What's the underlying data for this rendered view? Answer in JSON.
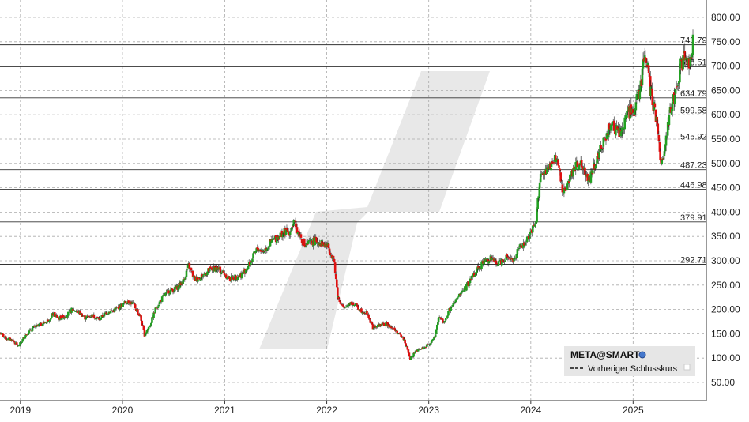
{
  "chart_data": {
    "type": "candlestick",
    "title": "",
    "xlabel": "",
    "ylabel": "",
    "ylim": [
      20,
      820
    ],
    "xlim": [
      "2018-10-20",
      "2025-09-20"
    ],
    "y_ticks": [
      "800.00",
      "750.00",
      "700.00",
      "650.00",
      "600.00",
      "550.00",
      "500.00",
      "450.00",
      "400.00",
      "350.00",
      "300.00",
      "250.00",
      "200.00",
      "150.00",
      "100.00",
      "50.00"
    ],
    "y_tick_values": [
      800,
      750,
      700,
      650,
      600,
      550,
      500,
      450,
      400,
      350,
      300,
      250,
      200,
      150,
      100,
      50
    ],
    "x_ticks": [
      "2019",
      "2020",
      "2021",
      "2022",
      "2023",
      "2024",
      "2025"
    ],
    "x_tick_dates": [
      "2019-01-01",
      "2020-01-01",
      "2021-01-01",
      "2022-01-01",
      "2023-01-01",
      "2024-01-01",
      "2025-01-01"
    ],
    "grid": true,
    "y_axis_position": "right",
    "levels": [
      {
        "value": 743.79,
        "label": "743.79"
      },
      {
        "value": 698.51,
        "label": "698.51"
      },
      {
        "value": 634.79,
        "label": "634.79"
      },
      {
        "value": 599.58,
        "label": "599.58"
      },
      {
        "value": 545.92,
        "label": "545.92"
      },
      {
        "value": 487.23,
        "label": "487.23"
      },
      {
        "value": 446.98,
        "label": "446.98"
      },
      {
        "value": 379.91,
        "label": "379.91"
      },
      {
        "value": 292.71,
        "label": "292.71"
      }
    ],
    "legend": {
      "title": "META@SMART",
      "entries": [
        "Vorheriger Schlusskurs"
      ],
      "placement": "bottom-right"
    },
    "up_color": "#22a022",
    "down_color": "#e01010",
    "series": [
      {
        "values": [
          [
            "2018-10-20",
            152
          ],
          [
            "2018-11-10",
            140
          ],
          [
            "2018-12-01",
            138
          ],
          [
            "2018-12-25",
            124
          ],
          [
            "2019-01-20",
            148
          ],
          [
            "2019-02-15",
            162
          ],
          [
            "2019-03-10",
            168
          ],
          [
            "2019-04-05",
            175
          ],
          [
            "2019-04-28",
            190
          ],
          [
            "2019-05-20",
            182
          ],
          [
            "2019-06-15",
            188
          ],
          [
            "2019-07-05",
            200
          ],
          [
            "2019-07-28",
            195
          ],
          [
            "2019-08-20",
            183
          ],
          [
            "2019-09-15",
            188
          ],
          [
            "2019-10-10",
            180
          ],
          [
            "2019-11-05",
            194
          ],
          [
            "2019-12-01",
            198
          ],
          [
            "2019-12-28",
            208
          ],
          [
            "2020-01-20",
            218
          ],
          [
            "2020-02-10",
            210
          ],
          [
            "2020-03-05",
            185
          ],
          [
            "2020-03-20",
            148
          ],
          [
            "2020-04-10",
            170
          ],
          [
            "2020-05-01",
            205
          ],
          [
            "2020-05-25",
            225
          ],
          [
            "2020-06-15",
            238
          ],
          [
            "2020-07-10",
            242
          ],
          [
            "2020-08-05",
            258
          ],
          [
            "2020-08-25",
            290
          ],
          [
            "2020-09-15",
            262
          ],
          [
            "2020-10-10",
            268
          ],
          [
            "2020-11-05",
            280
          ],
          [
            "2020-12-01",
            285
          ],
          [
            "2020-12-28",
            275
          ],
          [
            "2021-01-20",
            262
          ],
          [
            "2021-02-10",
            268
          ],
          [
            "2021-03-05",
            272
          ],
          [
            "2021-04-01",
            295
          ],
          [
            "2021-04-28",
            325
          ],
          [
            "2021-05-20",
            320
          ],
          [
            "2021-06-15",
            338
          ],
          [
            "2021-07-10",
            350
          ],
          [
            "2021-07-30",
            358
          ],
          [
            "2021-08-20",
            360
          ],
          [
            "2021-09-05",
            378
          ],
          [
            "2021-09-25",
            355
          ],
          [
            "2021-10-15",
            330
          ],
          [
            "2021-11-05",
            338
          ],
          [
            "2021-11-25",
            342
          ],
          [
            "2021-12-15",
            335
          ],
          [
            "2022-01-05",
            330
          ],
          [
            "2022-01-25",
            305
          ],
          [
            "2022-02-10",
            225
          ],
          [
            "2022-03-05",
            200
          ],
          [
            "2022-03-25",
            215
          ],
          [
            "2022-04-15",
            208
          ],
          [
            "2022-05-05",
            198
          ],
          [
            "2022-05-25",
            192
          ],
          [
            "2022-06-15",
            162
          ],
          [
            "2022-07-10",
            168
          ],
          [
            "2022-08-01",
            170
          ],
          [
            "2022-08-20",
            165
          ],
          [
            "2022-09-15",
            150
          ],
          [
            "2022-10-05",
            138
          ],
          [
            "2022-10-27",
            98
          ],
          [
            "2022-11-15",
            115
          ],
          [
            "2022-12-10",
            120
          ],
          [
            "2023-01-05",
            130
          ],
          [
            "2023-01-25",
            145
          ],
          [
            "2023-02-05",
            185
          ],
          [
            "2023-02-25",
            172
          ],
          [
            "2023-03-15",
            198
          ],
          [
            "2023-04-05",
            215
          ],
          [
            "2023-04-28",
            235
          ],
          [
            "2023-05-20",
            250
          ],
          [
            "2023-06-10",
            272
          ],
          [
            "2023-06-30",
            288
          ],
          [
            "2023-07-20",
            300
          ],
          [
            "2023-08-10",
            305
          ],
          [
            "2023-08-30",
            295
          ],
          [
            "2023-09-20",
            300
          ],
          [
            "2023-10-10",
            312
          ],
          [
            "2023-10-30",
            300
          ],
          [
            "2023-11-20",
            325
          ],
          [
            "2023-12-10",
            335
          ],
          [
            "2023-12-30",
            352
          ],
          [
            "2024-01-20",
            380
          ],
          [
            "2024-02-02",
            470
          ],
          [
            "2024-02-25",
            480
          ],
          [
            "2024-03-15",
            500
          ],
          [
            "2024-04-05",
            510
          ],
          [
            "2024-04-26",
            440
          ],
          [
            "2024-05-20",
            470
          ],
          [
            "2024-06-10",
            500
          ],
          [
            "2024-07-01",
            498
          ],
          [
            "2024-07-25",
            462
          ],
          [
            "2024-08-10",
            490
          ],
          [
            "2024-08-30",
            520
          ],
          [
            "2024-09-20",
            545
          ],
          [
            "2024-10-10",
            580
          ],
          [
            "2024-10-31",
            568
          ],
          [
            "2024-11-20",
            560
          ],
          [
            "2024-12-10",
            605
          ],
          [
            "2025-01-05",
            612
          ],
          [
            "2025-01-25",
            650
          ],
          [
            "2025-02-14",
            728
          ],
          [
            "2025-03-05",
            648
          ],
          [
            "2025-03-25",
            590
          ],
          [
            "2025-04-08",
            505
          ],
          [
            "2025-04-20",
            520
          ],
          [
            "2025-05-10",
            598
          ],
          [
            "2025-05-30",
            640
          ],
          [
            "2025-06-20",
            700
          ],
          [
            "2025-07-05",
            718
          ],
          [
            "2025-07-25",
            710
          ],
          [
            "2025-08-05",
            770
          ]
        ]
      }
    ]
  }
}
